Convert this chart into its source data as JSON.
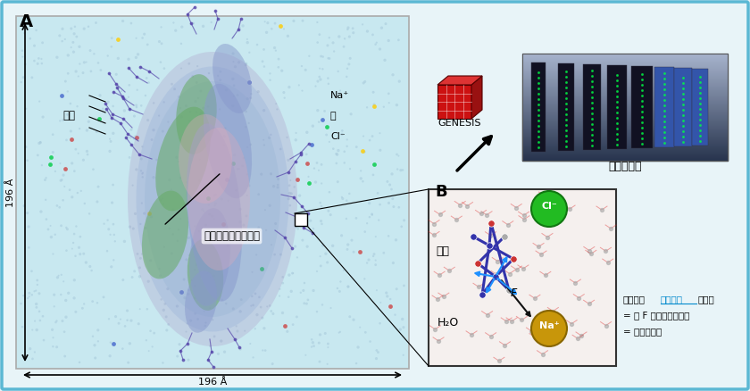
{
  "bg_color": "#e8f4f8",
  "border_color": "#5bb8d4",
  "panel_A_label": "A",
  "panel_B_label": "B",
  "dim_text_v": "196 Å",
  "dim_text_h": "196 Å",
  "labels_right_mol": [
    [
      "Cl⁻",
      282
    ],
    [
      "水",
      305
    ],
    [
      "Na⁺",
      328
    ]
  ],
  "spike_label": "スパイクタンパク質",
  "sugar_label": "糖鎖",
  "panel_B_text_line1a": "原子間に",
  "panel_B_text_highlight": "相互作用",
  "panel_B_text_line1b": "が働く",
  "panel_B_text_line2": "= 力 F が原子にかかる",
  "panel_B_text_line3": "= 原子が動く",
  "h2o_label": "H₂O",
  "na_label": "Na⁺",
  "cl_label": "Cl⁻",
  "sugar_b_label": "糖鎖",
  "f_label": "F",
  "genesis_label": "GENESIS",
  "fugaku_label": "富岳で計算",
  "na_color": "#c8960a",
  "cl_color": "#22bb22",
  "arrow_blue": "#1e90ff",
  "highlight_color": "#0088cc"
}
